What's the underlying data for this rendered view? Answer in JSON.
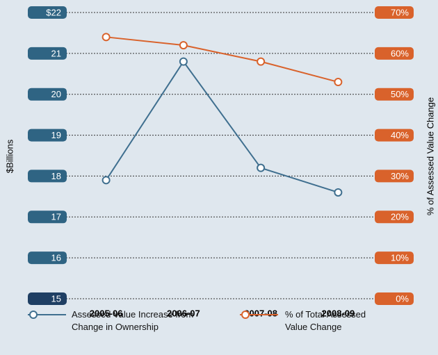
{
  "chart_data": {
    "type": "line",
    "y_label": "$Billions",
    "y2_label": "% of Assessed Value Change",
    "categories": [
      "2005-06",
      "2006-07",
      "2007-08",
      "2008-09"
    ],
    "series": [
      {
        "name": "Assessed Value Increase from Change in Ownership",
        "color": "#3f6f8f",
        "values": [
          17.9,
          20.8,
          18.2,
          17.6
        ]
      },
      {
        "name": "% of Total Assessed Value Change",
        "color": "#d9622b",
        "axis": "y2",
        "values": [
          64,
          62,
          58,
          53
        ]
      }
    ],
    "ylim": [
      15,
      22
    ],
    "yticks": [
      15,
      16,
      17,
      18,
      19,
      20,
      21,
      {
        "value": 22,
        "label": "$22"
      }
    ],
    "y2lim": [
      0,
      70
    ],
    "y2ticks": [
      {
        "value": 0,
        "label": "0%"
      },
      {
        "value": 10,
        "label": "10%"
      },
      {
        "value": 20,
        "label": "20%"
      },
      {
        "value": 30,
        "label": "30%"
      },
      {
        "value": 40,
        "label": "40%"
      },
      {
        "value": 50,
        "label": "50%"
      },
      {
        "value": 60,
        "label": "60%"
      },
      {
        "value": 70,
        "label": "70%"
      }
    ],
    "grid": true
  }
}
